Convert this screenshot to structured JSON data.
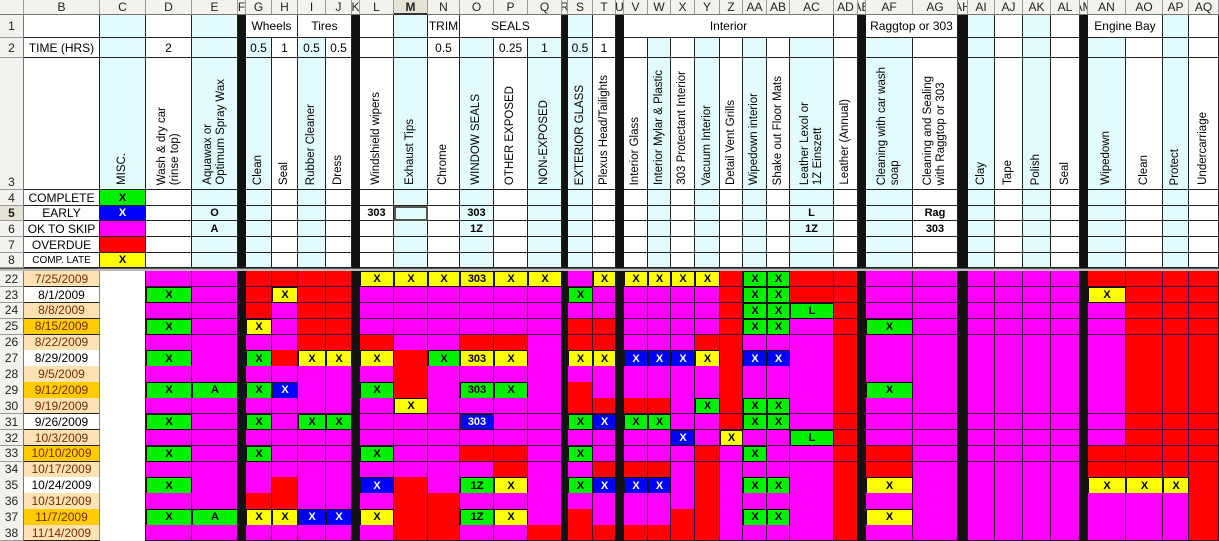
{
  "colors": {
    "magenta": "#ff00ff",
    "red": "#ff0000",
    "green": "#00f000",
    "yellow": "#ffff00",
    "blue": "#0000ff",
    "white": "#ffffff",
    "cyan_header": "#e2fbfb",
    "date_peach": "#fde3b4",
    "date_gold": "#ffcc00",
    "date_text": "#7a2a00",
    "separator": "#111111"
  },
  "column_headers": [
    "B",
    "C",
    "D",
    "E",
    "F",
    "G",
    "H",
    "I",
    "J",
    "K",
    "L",
    "M",
    "N",
    "O",
    "P",
    "Q",
    "R",
    "S",
    "T",
    "U",
    "V",
    "W",
    "X",
    "Y",
    "Z",
    "AA",
    "AB",
    "AC",
    "AD",
    "AE",
    "AF",
    "AG",
    "AH",
    "AI",
    "AJ",
    "AK",
    "AL",
    "AM",
    "AN",
    "AO",
    "AP",
    "AQ"
  ],
  "selected_column": "M",
  "selected_row": "5",
  "row1_groups": [
    {
      "label": "Wheels",
      "from": "G",
      "to": "H"
    },
    {
      "label": "Tires",
      "from": "I",
      "to": "J"
    },
    {
      "label": "TRIM",
      "from": "N",
      "to": "N"
    },
    {
      "label": "SEALS",
      "from": "O",
      "to": "Q"
    },
    {
      "label": "Interior",
      "from": "V",
      "to": "AC"
    },
    {
      "label": "Raggtop or 303",
      "from": "AF",
      "to": "AG"
    },
    {
      "label": "Engine Bay",
      "from": "AN",
      "to": "AO"
    }
  ],
  "row2": {
    "B": "TIME (HRS)",
    "D": "2",
    "G": "0.5",
    "H": "1",
    "I": "0.5",
    "J": "0.5",
    "N": "0.5",
    "P": "0.25",
    "Q": "1",
    "S": "0.5",
    "T": "1"
  },
  "row3_tasks": {
    "C": "MISC.",
    "D": "Wash & dry car\n(rinse top)",
    "E": "Aquawax or\nOptimum Spray Wax",
    "G": "Clean",
    "H": "Seal",
    "I": "Rubber Cleaner",
    "J": "Dress",
    "L": "Windshield wipers",
    "M": "Exhaust Tips",
    "N": "Chrome",
    "O": "WINDOW SEALS",
    "P": "OTHER EXPOSED",
    "Q": "NON-EXPOSED",
    "S": "EXTERIOR GLASS",
    "T": "Plexus Head/Tailights",
    "V": "Interior Glass",
    "W": "Interior Mylar & Plastic",
    "X": "303 Protectant Interior",
    "Y": "Vacuum Interior",
    "Z": "Detail Vent Grills",
    "AA": "Wipedown interior",
    "AB": "Shake out Floor Mats",
    "AC": "Leather Lexol or\n1Z Einszett",
    "AD": "Leather (Annual)",
    "AF": "Cleaning with car wash\nsoap",
    "AG": "Cleaning and Sealing\nwith Raggtop or 303",
    "AI": "Clay",
    "AJ": "Tape",
    "AK": "Polish",
    "AL": "Seal",
    "AN": "Wipedown",
    "AO": "Clean",
    "AP": "Protect",
    "AQ": "Undercarriage"
  },
  "legend_rows": [
    {
      "row": "4",
      "label": "COMPLETE",
      "color": "green",
      "mark": "X",
      "extras": {}
    },
    {
      "row": "5",
      "label": "EARLY",
      "color": "blue",
      "mark": "X",
      "extras": {
        "E": "O",
        "L": "303",
        "O": "303",
        "AC": "L",
        "AG": "Rag"
      }
    },
    {
      "row": "6",
      "label": "OK TO SKIP",
      "color": "magenta",
      "mark": "",
      "extras": {
        "E": "A",
        "O": "1Z",
        "AC": "1Z",
        "AG": "303"
      }
    },
    {
      "row": "7",
      "label": "OVERDUE",
      "color": "red",
      "mark": "",
      "extras": {}
    },
    {
      "row": "8",
      "label": "COMP. LATE",
      "color": "yellow",
      "mark": "X",
      "extras": {}
    }
  ],
  "header_row_numbers": [
    "1",
    "2",
    "3"
  ],
  "data_columns": [
    "C",
    "D",
    "E",
    "G",
    "H",
    "I",
    "J",
    "L",
    "M",
    "N",
    "O",
    "P",
    "Q",
    "S",
    "T",
    "V",
    "W",
    "X",
    "Y",
    "Z",
    "AA",
    "AB",
    "AC",
    "AD",
    "AF",
    "AG",
    "AI",
    "AJ",
    "AK",
    "AL",
    "AN",
    "AO",
    "AP",
    "AQ"
  ],
  "status_codes": {
    "m": "magenta",
    "r": "red",
    "g": "green",
    "y": "yellow",
    "b": "blue",
    "w": "white"
  },
  "schedule": [
    {
      "row": "22",
      "date": "7/25/2009",
      "date_style": "peach",
      "cells": "w m m r r r r yX yX yX y303 yX yX m yX yX yX yX yX r gX gX r r m m m m m m r r r r"
    },
    {
      "row": "23",
      "date": "8/1/2009",
      "date_style": "white",
      "cells": "w gX m r yX r r m m m m m m gX m m m m m r gX gX r r m m m m m m yX r r r"
    },
    {
      "row": "24",
      "date": "8/8/2009",
      "date_style": "peach",
      "cells": "w m m r m r r m m m m m m m m m m m m r gX gX gL r m m m m m m m r r r"
    },
    {
      "row": "25",
      "date": "8/15/2009",
      "date_style": "gold",
      "cells": "w gX m yX m r r m m m m m m r r m m m m r gX gX m r gX m m m m m m r r r"
    },
    {
      "row": "26",
      "date": "8/22/2009",
      "date_style": "peach",
      "cells": "w m m m m r r r m m r r m r r m m m r r m m m r m m m m m m m r r r"
    },
    {
      "row": "27",
      "date": "8/29/2009",
      "date_style": "white",
      "cells": "w gX m gX r yX yX yX r gX y303 yX m yX yX bX bX bX yX r bX bX m r m m m m m m m r r r"
    },
    {
      "row": "28",
      "date": "9/5/2009",
      "date_style": "peach",
      "cells": "w m m m m m m m r m m m m m m m m m m r m m m r m m m m m m m r r r"
    },
    {
      "row": "29",
      "date": "9/12/2009",
      "date_style": "gold",
      "cells": "w gX gA gX bX m m gX r m g303 gX m r m m m m m r m m m r gX m m m m m m r r r"
    },
    {
      "row": "30",
      "date": "9/19/2009",
      "date_style": "peach",
      "cells": "w m m m m m m m yX m m m m r r r r m gX r gX gX m r m m m m m m m r r r"
    },
    {
      "row": "31",
      "date": "9/26/2009",
      "date_style": "white",
      "cells": "w gX m gX m gX gX m m m b303 m m gX bX gX gX m m r gX gX m r m m m m m m m r r r"
    },
    {
      "row": "32",
      "date": "10/3/2009",
      "date_style": "peach",
      "cells": "w m m m m m m m m m m m m m m m m bX m yX m m gL r m m m m m m m r r r"
    },
    {
      "row": "33",
      "date": "10/10/2009",
      "date_style": "gold",
      "cells": "w gX m gX m m m gX m m r r m gX m m m m r m gX m m r r m m m m m r r r r"
    },
    {
      "row": "34",
      "date": "10/17/2009",
      "date_style": "peach",
      "cells": "w m m m m m m m m m m r m m r r r m r m m m m r r m m m m m r r r r"
    },
    {
      "row": "35",
      "date": "10/24/2009",
      "date_style": "white",
      "cells": "w gX m m r m m bX r m g1Z yX m gX bX bX bX m r m gX gX m r yX m m m m m yX yX yX r"
    },
    {
      "row": "36",
      "date": "10/31/2009",
      "date_style": "peach",
      "cells": "w m m r r m m m r r m m m m m m m m r m m m m r m m m m m m m m m r"
    },
    {
      "row": "37",
      "date": "11/7/2009",
      "date_style": "gold",
      "cells": "w gX gA yX yX bX bX yX r r g1Z yX m r m m m r r m gX gX m r yX m m m m m m m m r"
    },
    {
      "row": "38",
      "date": "11/14/2009",
      "date_style": "peach",
      "cells": "w m m m m m m m r r m m r r r r r r r m m m m r m m m m m m m m m r"
    }
  ]
}
